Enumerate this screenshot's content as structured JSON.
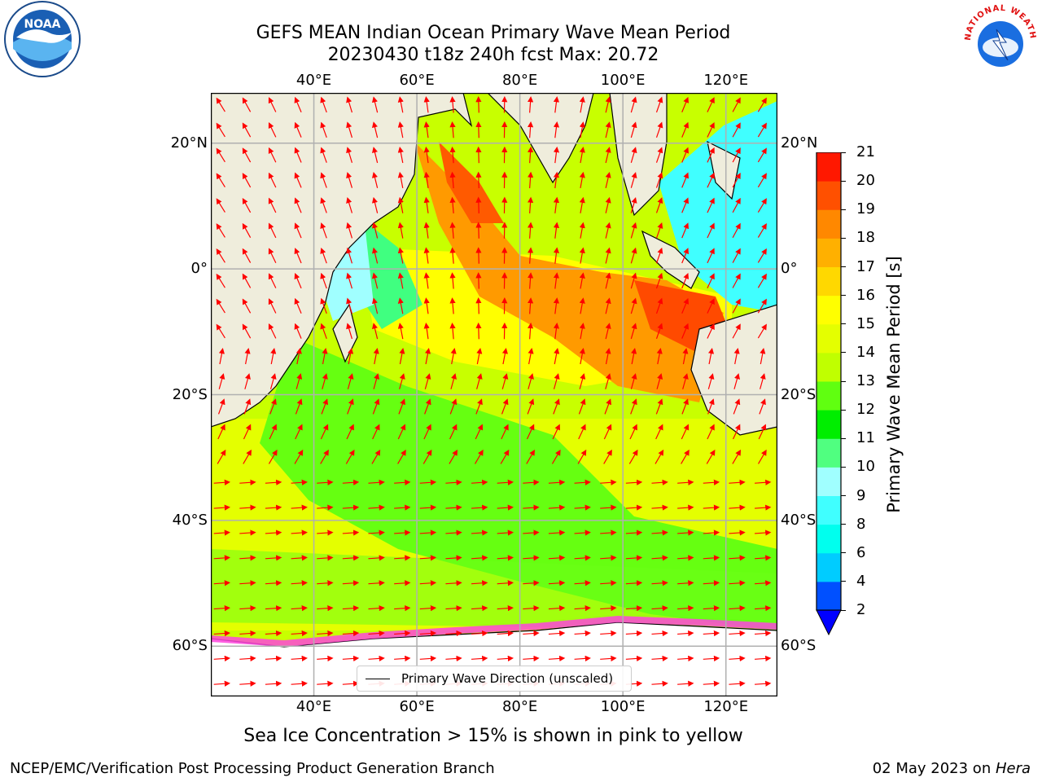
{
  "title": {
    "line1": "GEFS MEAN Indian Ocean Primary Wave Mean Period",
    "line2": "20230430 t18z 240h fcst   Max: 20.72"
  },
  "axes": {
    "lon_ticks": [
      "40°E",
      "60°E",
      "80°E",
      "100°E",
      "120°E"
    ],
    "lon_values": [
      40,
      60,
      80,
      100,
      120
    ],
    "lat_ticks": [
      "20°N",
      "0°",
      "20°S",
      "40°S",
      "60°S"
    ],
    "lat_values": [
      20,
      0,
      -20,
      -40,
      -60
    ],
    "lon_range": [
      20,
      130
    ],
    "lat_range": [
      -68,
      28
    ],
    "grid": true
  },
  "colorbar": {
    "title": "Primary Wave Mean Period [s]",
    "labels": [
      "2",
      "4",
      "6",
      "8",
      "9",
      "10",
      "11",
      "12",
      "13",
      "14",
      "15",
      "16",
      "17",
      "18",
      "19",
      "20",
      "21"
    ],
    "colors": [
      "#0050ff",
      "#00ccff",
      "#00ffee",
      "#40ffff",
      "#a0ffff",
      "#50ff80",
      "#00ee00",
      "#60ff10",
      "#c0ff00",
      "#e4ff00",
      "#ffff00",
      "#ffd800",
      "#ffb000",
      "#ff8800",
      "#ff5000",
      "#ff1800",
      "#ff0000"
    ],
    "under_color": "#0000ff"
  },
  "legend": {
    "label": "Primary Wave Direction (unscaled)"
  },
  "caption": "Sea Ice Concentration > 15% is shown in pink to yellow",
  "footer": {
    "left": "NCEP/EMC/Verification Post Processing Product Generation Branch",
    "date": "02 May 2023 on ",
    "machine": "Hera"
  },
  "logos": {
    "noaa": "NOAA",
    "nws": "NATIONAL WEATHER SERVICE"
  },
  "colors": {
    "land": "#efeddc",
    "arrow": "#ff0000",
    "sea_ice": "#ff44dd"
  }
}
